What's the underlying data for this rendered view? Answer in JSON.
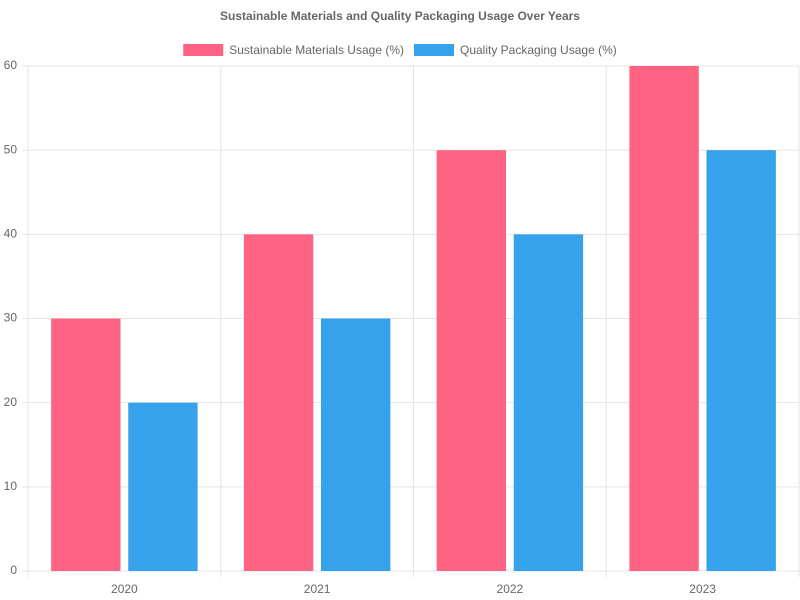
{
  "chart_data": {
    "type": "bar",
    "title": "Sustainable Materials and Quality Packaging Usage Over Years",
    "categories": [
      "2020",
      "2021",
      "2022",
      "2023"
    ],
    "series": [
      {
        "name": "Sustainable Materials Usage (%)",
        "color": "#ff6384",
        "values": [
          30,
          40,
          50,
          60
        ]
      },
      {
        "name": "Quality Packaging Usage (%)",
        "color": "#36a2eb",
        "values": [
          20,
          30,
          40,
          50
        ]
      }
    ],
    "ylim": [
      0,
      60
    ],
    "yticks": [
      0,
      10,
      20,
      30,
      40,
      50,
      60
    ],
    "grid": true,
    "legend": "top"
  }
}
